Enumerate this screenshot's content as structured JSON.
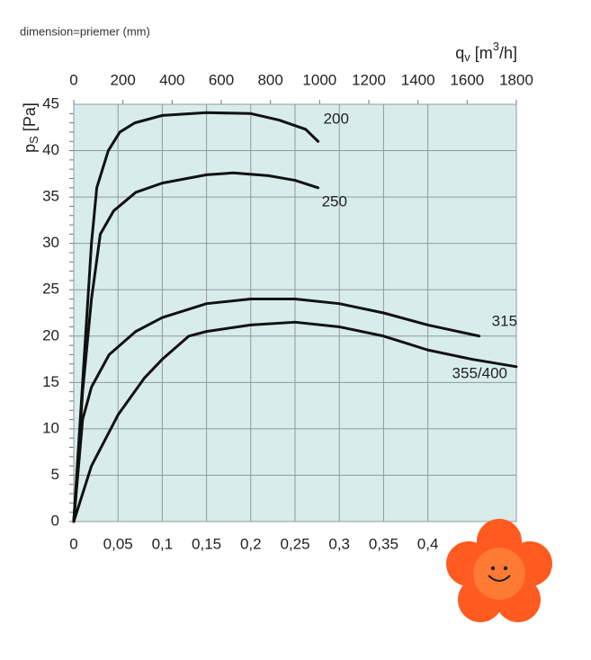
{
  "chart_data": {
    "type": "line",
    "note": "dimension=priemer (mm)",
    "y_label": {
      "main": "p",
      "sub": "S",
      "rest": " [Pa]"
    },
    "x2_label": {
      "main": "q",
      "sub": "v",
      "open": " [m",
      "sup": "3",
      "close": "/h]"
    },
    "xlim": [
      0,
      0.5
    ],
    "xticks": [
      0,
      {
        "value": 0.05,
        "label": "0,05"
      },
      {
        "value": 0.1,
        "label": "0,1"
      },
      {
        "value": 0.15,
        "label": "0,15"
      },
      {
        "value": 0.2,
        "label": "0,2"
      },
      {
        "value": 0.25,
        "label": "0,25"
      },
      {
        "value": 0.3,
        "label": "0,3"
      },
      {
        "value": 0.35,
        "label": "0,35"
      },
      {
        "value": 0.4,
        "label": "0,4"
      }
    ],
    "x2lim": [
      0,
      1800
    ],
    "x2ticks": [
      0,
      200,
      400,
      600,
      800,
      1000,
      1200,
      1400,
      1600,
      1800
    ],
    "ylim": [
      0,
      45
    ],
    "yticks": [
      0,
      5,
      10,
      15,
      20,
      25,
      30,
      35,
      40,
      45
    ],
    "grid": true,
    "background": "#d8ecec",
    "series": [
      {
        "name": "200",
        "color": "#111111",
        "x": [
          0,
          0.01,
          0.02,
          0.026,
          0.039,
          0.052,
          0.069,
          0.1,
          0.15,
          0.2,
          0.232,
          0.262,
          0.276
        ],
        "values": [
          0,
          15,
          30,
          36,
          40,
          42,
          43,
          43.8,
          44.1,
          44,
          43.3,
          42.3,
          41
        ]
      },
      {
        "name": "250",
        "color": "#111111",
        "x": [
          0,
          0.01,
          0.02,
          0.03,
          0.045,
          0.07,
          0.1,
          0.15,
          0.18,
          0.22,
          0.25,
          0.276
        ],
        "values": [
          0,
          14,
          24,
          31,
          33.5,
          35.5,
          36.5,
          37.4,
          37.6,
          37.3,
          36.8,
          36
        ]
      },
      {
        "name": "315",
        "color": "#111111",
        "x": [
          0,
          0.01,
          0.02,
          0.04,
          0.07,
          0.1,
          0.15,
          0.2,
          0.25,
          0.3,
          0.35,
          0.4,
          0.458
        ],
        "values": [
          0,
          11,
          14.5,
          18,
          20.5,
          22,
          23.5,
          24,
          24,
          23.5,
          22.5,
          21.2,
          20
        ]
      },
      {
        "name": "355/400",
        "color": "#111111",
        "x": [
          0,
          0.02,
          0.05,
          0.08,
          0.1,
          0.13,
          0.15,
          0.2,
          0.25,
          0.3,
          0.35,
          0.4,
          0.45,
          0.5
        ],
        "values": [
          0,
          6,
          11.5,
          15.5,
          17.5,
          20,
          20.5,
          21.2,
          21.5,
          21,
          20,
          18.5,
          17.5,
          16.7
        ]
      }
    ]
  }
}
